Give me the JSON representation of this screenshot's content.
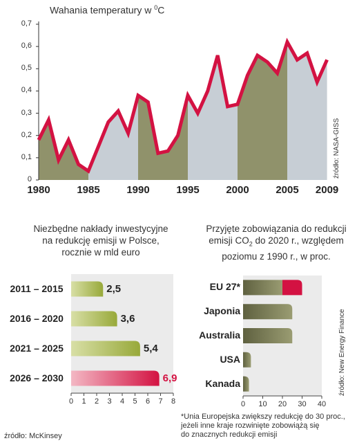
{
  "chart_data": [
    {
      "type": "line",
      "title": "Wahania temperatury w ",
      "title_unit_sup": "0",
      "title_unit": "C",
      "source": "źródło: NASA-GISS",
      "ylim": [
        0,
        0.7
      ],
      "yticks": [
        "0",
        "0,1",
        "0,2",
        "0,3",
        "0,4",
        "0,5",
        "0,6",
        "0,7"
      ],
      "xlim": [
        1980,
        2010
      ],
      "xticks": [
        "1980",
        "1985",
        "1990",
        "1995",
        "2000",
        "2005",
        "2009"
      ],
      "x": [
        1980,
        1981,
        1982,
        1983,
        1984,
        1985,
        1986,
        1987,
        1988,
        1989,
        1990,
        1991,
        1992,
        1993,
        1994,
        1995,
        1996,
        1997,
        1998,
        1999,
        2000,
        2001,
        2002,
        2003,
        2004,
        2005,
        2006,
        2007,
        2008,
        2009
      ],
      "values": [
        0.18,
        0.27,
        0.09,
        0.18,
        0.07,
        0.04,
        0.15,
        0.26,
        0.31,
        0.21,
        0.38,
        0.35,
        0.12,
        0.13,
        0.2,
        0.38,
        0.3,
        0.4,
        0.56,
        0.33,
        0.34,
        0.47,
        0.56,
        0.53,
        0.48,
        0.62,
        0.54,
        0.57,
        0.44,
        0.54
      ],
      "color": "#d31242",
      "band_dark": "#8a8c63",
      "band_light": "#b9c2cb"
    },
    {
      "type": "bar",
      "orientation": "horizontal",
      "title": "Niezbędne nakłady inwestycyjne na redukcję emisji w Polsce, rocznie w mld euro",
      "title_lines": [
        "Niezbędne nakłady inwestycyjne",
        "na redukcję emisji w Polsce,",
        "rocznie w mld euro"
      ],
      "categories": [
        "2011 – 2015",
        "2016 – 2020",
        "2021 – 2025",
        "2026 – 2030"
      ],
      "values": [
        2.5,
        3.6,
        5.4,
        6.9
      ],
      "value_labels": [
        "2,5",
        "3,6",
        "5,4",
        "6,9"
      ],
      "xlim": [
        0,
        8
      ],
      "xticks": [
        "0",
        "1",
        "2",
        "3",
        "4",
        "5",
        "6",
        "7",
        "8"
      ],
      "source": "źródło: McKinsey",
      "colors": [
        "#b5c25a",
        "#b5c25a",
        "#b5c25a",
        "#d31242"
      ]
    },
    {
      "type": "bar",
      "orientation": "horizontal",
      "title": "Przyjęte zobowiązania do redukcji emisji CO2 do 2020 r., względem poziomu z 1990 r., w proc.",
      "title_lines": [
        "Przyjęte zobowiązania do redukcji",
        "emisji CO",
        "2",
        " do 2020 r.,  względem",
        "poziomu z 1990 r., w proc."
      ],
      "categories": [
        "EU 27*",
        "Japonia",
        "Australia",
        "USA",
        "Kanada"
      ],
      "values": [
        20,
        25,
        25,
        4,
        3
      ],
      "max_values": [
        30,
        25,
        25,
        4,
        3
      ],
      "xlim": [
        0,
        40
      ],
      "xticks": [
        "0",
        "10",
        "20",
        "30",
        "40"
      ],
      "source": "źródło: New Energy Finance",
      "footnote_lines": [
        "*Unia Europejska zwiększy redukcję do 30 proc.,",
        "jeżeli inne kraje rozwinięte zobowiążą się",
        "do znacznych redukcji emisji"
      ],
      "color": "#7c7e55",
      "highlight": "#d31242"
    }
  ]
}
